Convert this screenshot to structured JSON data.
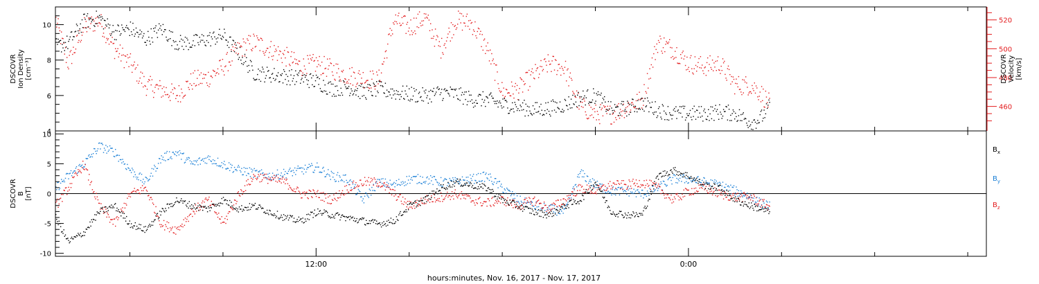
{
  "caption": "hours:minutes, Nov. 16, 2017 - Nov. 17, 2017",
  "time_ticks": [
    "12:00",
    "0:00"
  ],
  "colors": {
    "black": "#000000",
    "red": "#e31a1c",
    "blue": "#1a7fd6",
    "axis": "#000000"
  },
  "chart_data": [
    {
      "type": "scatter",
      "panel": "top",
      "x_unit": "hours since 2017-11-16 00:00",
      "xlim": [
        3.6,
        33.6
      ],
      "ylabel_left": [
        "DSCOVR",
        "Ion Density",
        "[cm⁻³]"
      ],
      "ylabel_right": [
        "DSCOVR",
        "Velocity",
        "[km/s]"
      ],
      "ylim_left": [
        4,
        11
      ],
      "yticks_left": [
        "4",
        "6",
        "8",
        "10"
      ],
      "yticks_left_values": [
        4,
        6,
        8,
        10
      ],
      "ylim_right": [
        443,
        529
      ],
      "yticks_right": [
        "460",
        "480",
        "500",
        "520"
      ],
      "yticks_right_values": [
        460,
        480,
        500,
        520
      ],
      "series": [
        {
          "axis": "left",
          "color": "#000000",
          "x": [
            3.6,
            4.0,
            4.5,
            5.0,
            5.5,
            6.0,
            6.5,
            7.0,
            7.5,
            8.0,
            8.5,
            9.0,
            9.5,
            10.0,
            10.5,
            11.0,
            11.5,
            12.0,
            12.5,
            13.0,
            13.5,
            14.0,
            14.5,
            15.0,
            15.5,
            16.0,
            16.5,
            17.0,
            17.5,
            18.0,
            18.5,
            19.0,
            19.5,
            20.0,
            20.5,
            21.0,
            21.5,
            22.0,
            22.5,
            23.0,
            23.5,
            24.0,
            24.5,
            25.0,
            25.5,
            26.0,
            26.3,
            26.6
          ],
          "y": [
            8.8,
            9.0,
            10.2,
            10.4,
            9.6,
            9.8,
            9.2,
            9.8,
            9.0,
            9.0,
            9.2,
            9.4,
            8.4,
            7.3,
            7.2,
            7.1,
            7.0,
            6.8,
            6.4,
            6.5,
            6.2,
            6.4,
            6.2,
            6.1,
            6.0,
            6.2,
            6.1,
            5.8,
            5.8,
            5.5,
            5.4,
            5.2,
            5.3,
            5.5,
            5.9,
            6.0,
            5.2,
            5.3,
            5.6,
            5.2,
            5.0,
            5.0,
            5.0,
            5.1,
            5.0,
            4.5,
            4.7,
            5.4
          ]
        },
        {
          "axis": "right",
          "color": "#e31a1c",
          "x": [
            3.6,
            4.0,
            4.5,
            5.0,
            5.5,
            6.0,
            6.5,
            7.0,
            7.5,
            8.0,
            8.5,
            9.0,
            9.5,
            10.0,
            10.5,
            11.0,
            11.5,
            12.0,
            12.5,
            13.0,
            13.5,
            14.0,
            14.5,
            15.0,
            15.5,
            16.0,
            16.5,
            17.0,
            17.5,
            18.0,
            18.5,
            19.0,
            19.5,
            20.0,
            20.5,
            21.0,
            21.5,
            22.0,
            22.5,
            23.0,
            23.5,
            24.0,
            24.5,
            25.0,
            25.5,
            26.0,
            26.3,
            26.6
          ],
          "y": [
            520,
            490,
            515,
            520,
            500,
            490,
            475,
            472,
            468,
            478,
            480,
            488,
            500,
            505,
            500,
            495,
            488,
            490,
            486,
            482,
            480,
            478,
            520,
            515,
            522,
            500,
            520,
            518,
            500,
            470,
            472,
            482,
            490,
            487,
            460,
            455,
            455,
            460,
            465,
            505,
            500,
            490,
            488,
            490,
            475,
            475,
            470,
            462
          ]
        }
      ]
    },
    {
      "type": "scatter",
      "panel": "bottom",
      "x_unit": "hours since 2017-11-16 00:00",
      "xlim": [
        3.6,
        33.6
      ],
      "ylabel_left": [
        "DSCOVR",
        "B",
        "[nT]"
      ],
      "ylim": [
        -10.5,
        10.5
      ],
      "yticks": [
        "-10",
        "-5",
        "0",
        "5",
        "10"
      ],
      "yticks_values": [
        -10,
        -5,
        0,
        5,
        10
      ],
      "zero_line": true,
      "legend_placement": "right",
      "series": [
        {
          "name": "Bx",
          "name_main": "B",
          "name_sub": "x",
          "color": "#000000",
          "x": [
            3.6,
            4.0,
            4.5,
            5.0,
            5.5,
            6.0,
            6.5,
            7.0,
            7.5,
            8.0,
            8.5,
            9.0,
            9.5,
            10.0,
            10.5,
            11.0,
            11.5,
            12.0,
            12.5,
            13.0,
            13.5,
            14.0,
            14.5,
            15.0,
            15.5,
            16.0,
            16.5,
            17.0,
            17.5,
            18.0,
            18.5,
            19.0,
            19.5,
            20.0,
            20.5,
            21.0,
            21.5,
            22.0,
            22.5,
            23.0,
            23.5,
            24.0,
            24.5,
            25.0,
            25.5,
            26.0,
            26.3,
            26.6
          ],
          "y": [
            -4.0,
            -8.0,
            -6.5,
            -3.0,
            -2.0,
            -5.0,
            -6.0,
            -3.0,
            -1.0,
            -2.0,
            -2.5,
            -1.0,
            -2.5,
            -2.0,
            -3.0,
            -4.0,
            -4.5,
            -3.0,
            -3.5,
            -4.0,
            -4.5,
            -5.0,
            -4.5,
            -2.0,
            -1.0,
            1.0,
            2.0,
            1.5,
            1.0,
            -1.0,
            -2.0,
            -3.0,
            -3.5,
            -2.0,
            -1.0,
            2.0,
            -3.0,
            -3.5,
            -3.5,
            3.0,
            4.0,
            3.0,
            1.5,
            1.0,
            -1.0,
            -2.0,
            -2.5,
            -3.0
          ]
        },
        {
          "name": "By",
          "name_main": "B",
          "name_sub": "y",
          "color": "#1a7fd6",
          "x": [
            3.6,
            4.0,
            4.5,
            5.0,
            5.5,
            6.0,
            6.5,
            7.0,
            7.5,
            8.0,
            8.5,
            9.0,
            9.5,
            10.0,
            10.5,
            11.0,
            11.5,
            12.0,
            12.5,
            13.0,
            13.5,
            14.0,
            14.5,
            15.0,
            15.5,
            16.0,
            16.5,
            17.0,
            17.5,
            18.0,
            18.5,
            19.0,
            19.5,
            20.0,
            20.5,
            21.0,
            21.5,
            22.0,
            22.5,
            23.0,
            23.5,
            24.0,
            24.5,
            25.0,
            25.5,
            26.0,
            26.3,
            26.6
          ],
          "y": [
            1.0,
            3.0,
            5.0,
            8.0,
            7.0,
            4.0,
            2.0,
            6.0,
            7.0,
            5.0,
            6.0,
            5.0,
            4.0,
            3.5,
            3.0,
            3.5,
            4.0,
            4.5,
            3.0,
            2.5,
            -1.0,
            2.0,
            1.5,
            2.5,
            2.5,
            2.0,
            2.0,
            2.5,
            3.0,
            1.0,
            -1.0,
            -2.0,
            -2.5,
            -3.0,
            3.5,
            1.5,
            0.5,
            0.5,
            0.0,
            1.0,
            2.5,
            2.5,
            2.0,
            1.5,
            0.5,
            -0.5,
            -1.5,
            -2.0
          ]
        },
        {
          "name": "Bz",
          "name_main": "B",
          "name_sub": "z",
          "color": "#e31a1c",
          "x": [
            3.6,
            4.0,
            4.5,
            5.0,
            5.5,
            6.0,
            6.5,
            7.0,
            7.5,
            8.0,
            8.5,
            9.0,
            9.5,
            10.0,
            10.5,
            11.0,
            11.5,
            12.0,
            12.5,
            13.0,
            13.5,
            14.0,
            14.5,
            15.0,
            15.5,
            16.0,
            16.5,
            17.0,
            17.5,
            18.0,
            18.5,
            19.0,
            19.5,
            20.0,
            20.5,
            21.0,
            21.5,
            22.0,
            22.5,
            23.0,
            23.5,
            24.0,
            24.5,
            25.0,
            25.5,
            26.0,
            26.3,
            26.6
          ],
          "y": [
            -2.0,
            1.0,
            5.0,
            -2.0,
            -5.0,
            0.0,
            1.0,
            -5.0,
            -6.0,
            -3.0,
            -1.0,
            -5.0,
            0.0,
            3.0,
            2.5,
            2.0,
            0.0,
            0.0,
            -1.0,
            1.0,
            2.0,
            2.0,
            0.0,
            -2.0,
            -1.0,
            -0.5,
            0.0,
            -1.0,
            -1.5,
            -1.0,
            -2.0,
            -1.0,
            -2.5,
            -1.0,
            1.0,
            0.5,
            1.5,
            1.5,
            2.0,
            1.0,
            -1.0,
            0.5,
            1.0,
            0.0,
            -0.5,
            -0.5,
            -1.5,
            -2.0
          ]
        }
      ]
    }
  ]
}
